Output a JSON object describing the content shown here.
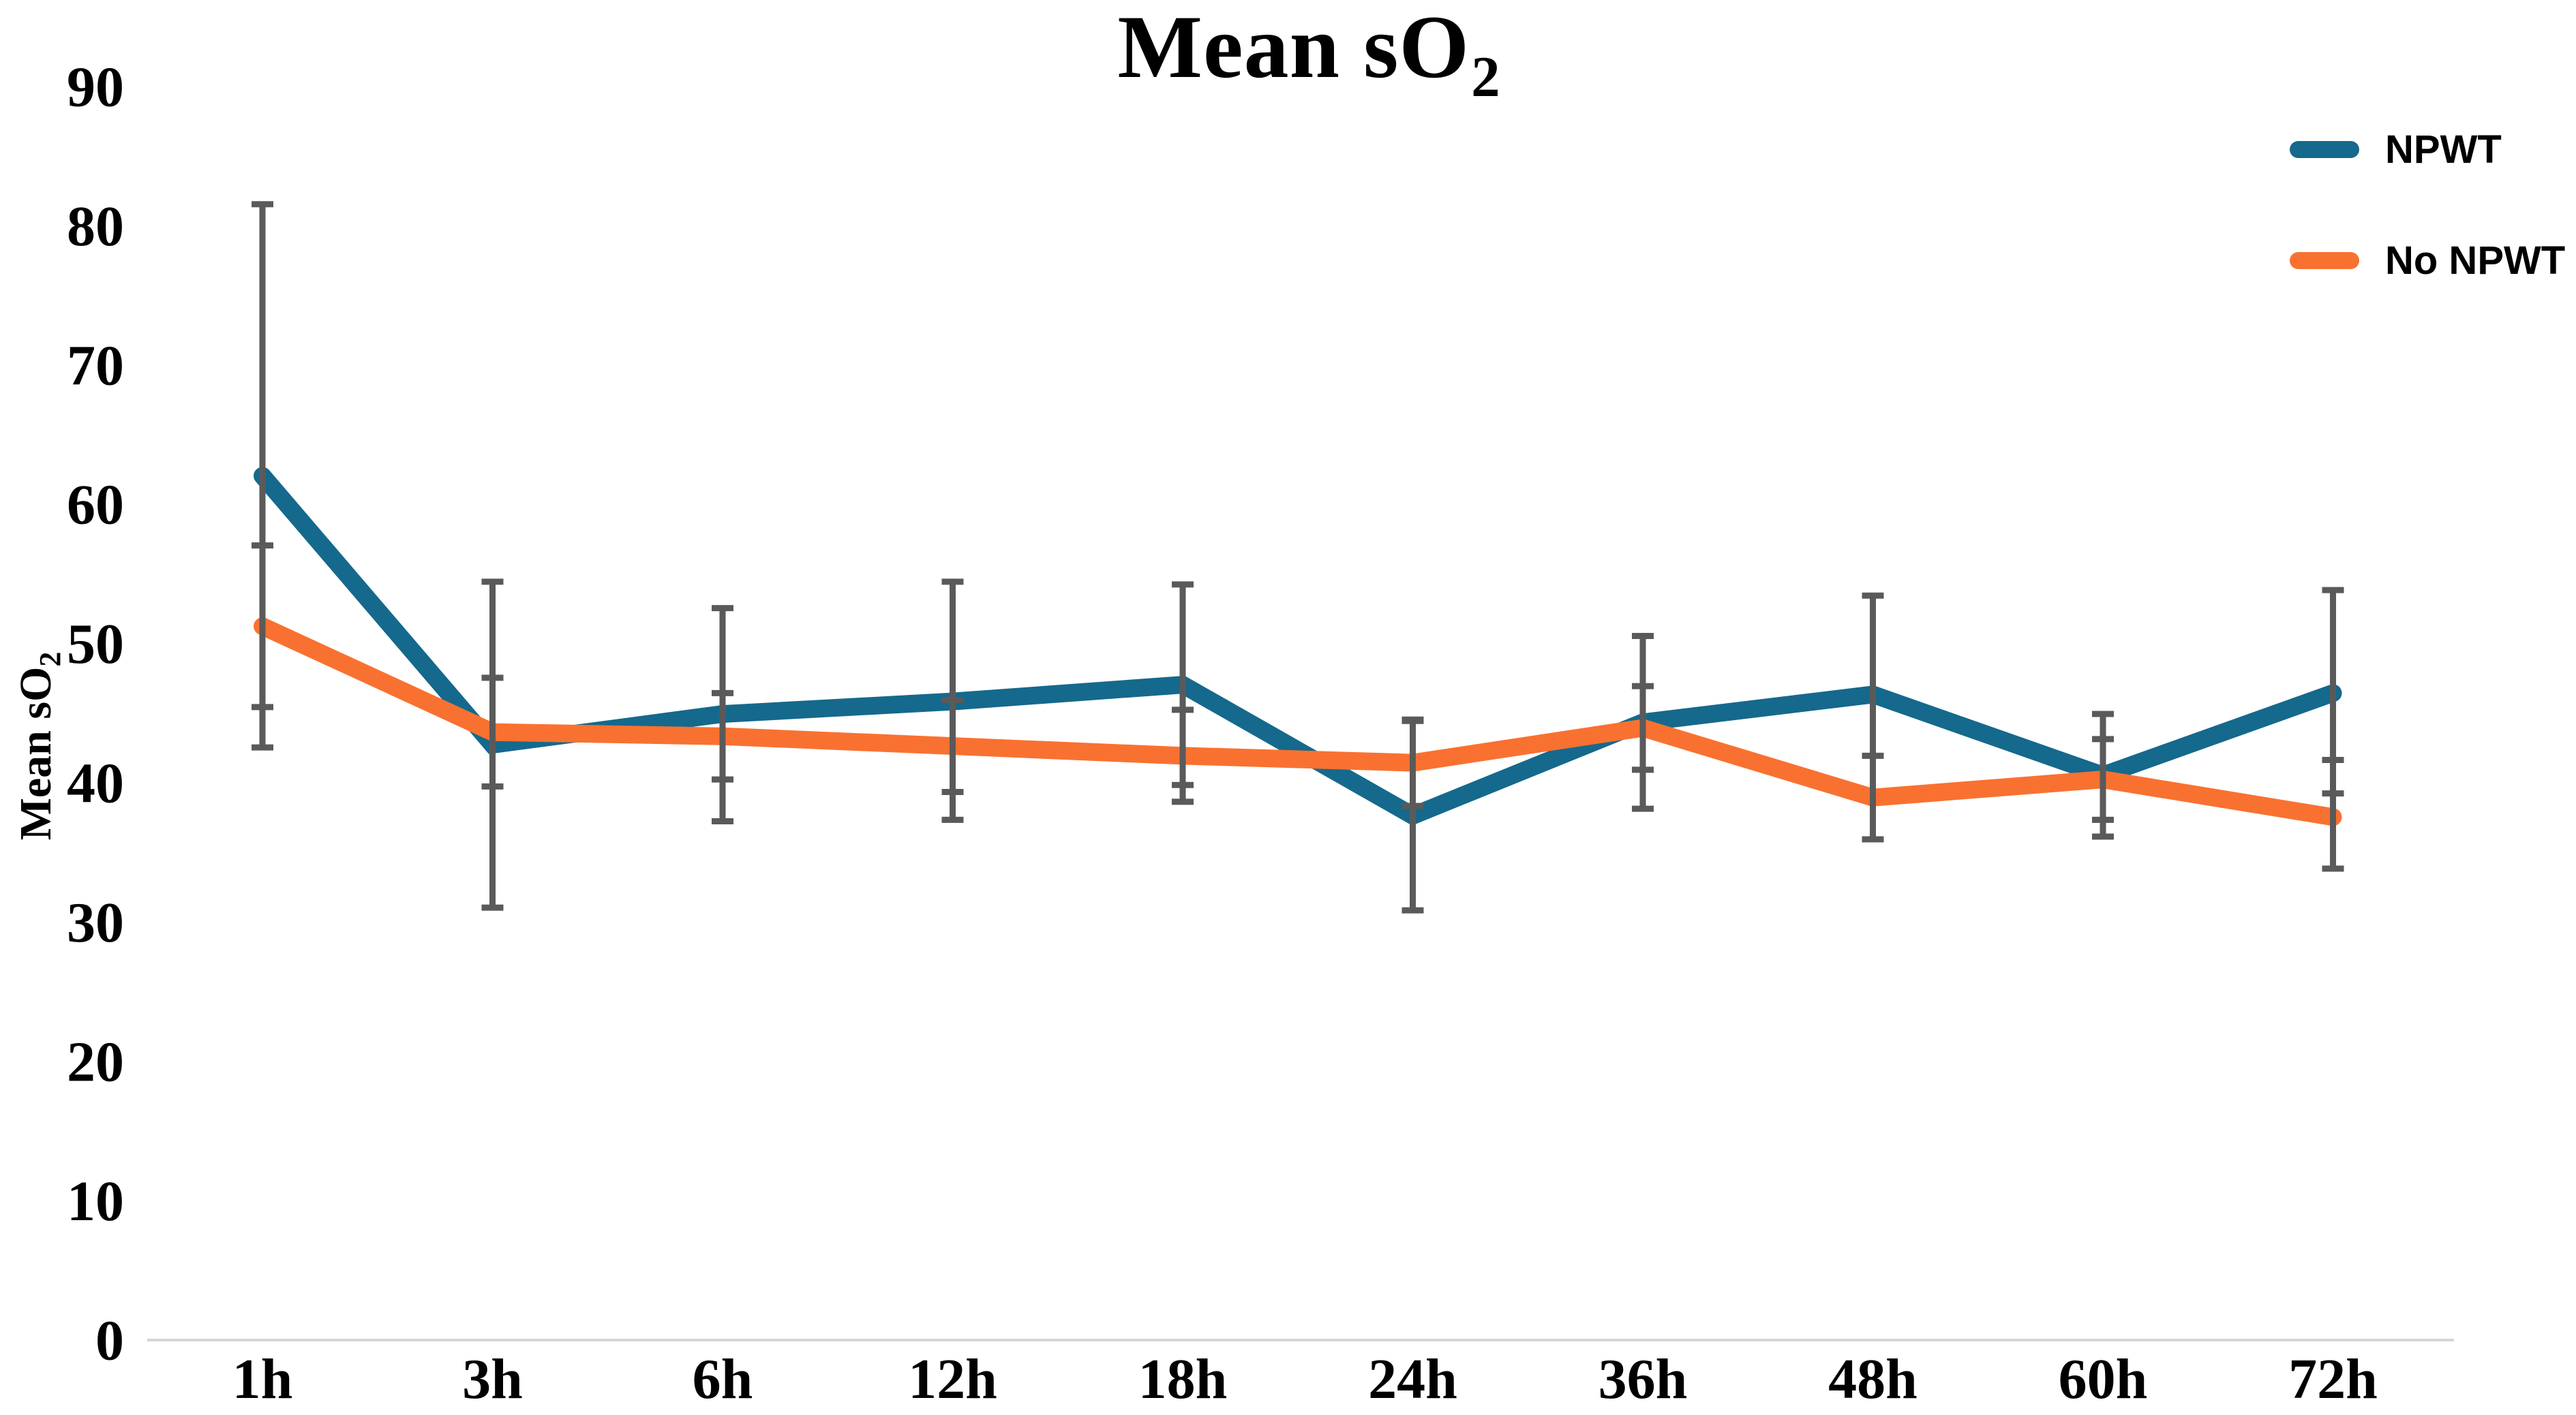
{
  "chart_data": {
    "type": "line",
    "title": {
      "main": "Mean sO",
      "subscript": "2"
    },
    "y_axis": {
      "title_main": "Mean sO",
      "title_subscript": "2",
      "min": 0,
      "max": 90,
      "tick_step": 10,
      "tick_labels": [
        "0",
        "10",
        "20",
        "30",
        "40",
        "50",
        "60",
        "70",
        "80",
        "90"
      ]
    },
    "x_axis": {
      "tick_labels": [
        "1h",
        "3h",
        "6h",
        "12h",
        "18h",
        "24h",
        "36h",
        "48h",
        "60h",
        "72h"
      ]
    },
    "categories": [
      "1h",
      "3h",
      "6h",
      "12h",
      "18h",
      "24h",
      "36h",
      "48h",
      "60h",
      "72h"
    ],
    "series": [
      {
        "name": "NPWT",
        "color": "#15698C",
        "values": [
          62.0,
          42.7,
          44.9,
          45.8,
          47.0,
          37.6,
          44.3,
          46.3,
          40.5,
          46.4
        ],
        "error_low": [
          42.5,
          31.0,
          37.2,
          37.3,
          39.8,
          30.8,
          38.1,
          39.3,
          36.1,
          39.2
        ],
        "error_high": [
          81.5,
          54.4,
          52.5,
          54.4,
          54.2,
          44.4,
          50.5,
          53.4,
          44.9,
          53.8
        ]
      },
      {
        "name": "No NPWT",
        "color": "#F97130",
        "values": [
          51.2,
          43.6,
          43.3,
          42.6,
          41.9,
          41.4,
          43.9,
          38.9,
          40.2,
          37.5
        ],
        "error_low": [
          45.4,
          39.7,
          40.2,
          39.3,
          38.6,
          38.3,
          40.9,
          35.9,
          37.3,
          33.8
        ],
        "error_high": [
          57.0,
          47.5,
          46.4,
          45.9,
          45.2,
          44.5,
          46.9,
          41.9,
          43.1,
          41.6
        ]
      }
    ],
    "error_bar_color": "#5A5A5A",
    "axis_line_color": "#D5D5D5",
    "background_color": "#FFFFFF",
    "legend_position": "top-right",
    "grid": false,
    "ylim": [
      0,
      90
    ]
  }
}
